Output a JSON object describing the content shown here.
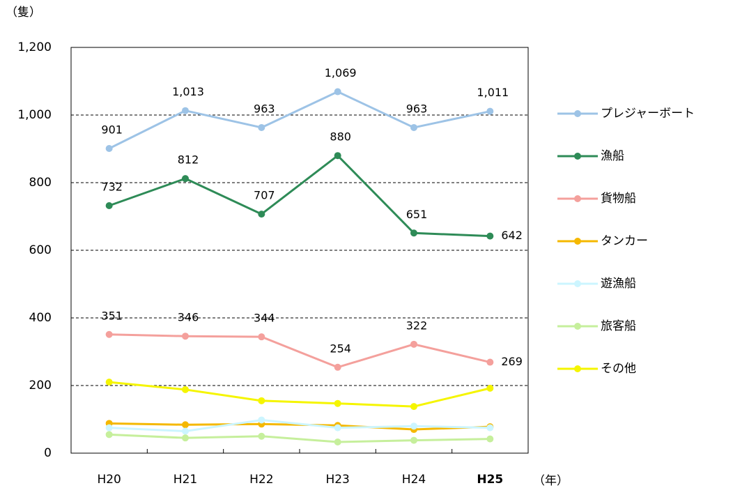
{
  "chart_data": {
    "type": "line",
    "y_axis_label": "（隻）",
    "x_axis_label": "（年）",
    "categories": [
      "H20",
      "H21",
      "H22",
      "H23",
      "H24",
      "H25"
    ],
    "category_colors": [
      "#000000",
      "#000000",
      "#000000",
      "#000000",
      "#000000",
      "#ff0000"
    ],
    "ylim": [
      0,
      1200
    ],
    "yticks": [
      0,
      200,
      400,
      600,
      800,
      {
        "value": 1000,
        "label": "1,000"
      },
      {
        "value": 1200,
        "label": "1,200"
      }
    ],
    "grid": true,
    "legend": "right",
    "series": [
      {
        "name": "プレジャーボート",
        "color": "#9dc3e6",
        "values": [
          901,
          1013,
          963,
          1069,
          963,
          1011
        ],
        "value_labels": [
          "901",
          "1,013",
          "963",
          "1,069",
          "963",
          "1,011"
        ]
      },
      {
        "name": "漁船",
        "color": "#2e8b57",
        "values": [
          732,
          812,
          707,
          880,
          651,
          642
        ],
        "data_labels": true
      },
      {
        "name": "貨物船",
        "color": "#f4a09c",
        "values": [
          351,
          346,
          344,
          254,
          322,
          269
        ],
        "data_labels": true
      },
      {
        "name": "タンカー",
        "color": "#f5b800",
        "values": [
          88,
          84,
          86,
          82,
          70,
          78
        ]
      },
      {
        "name": "遊漁船",
        "color": "#ccf5ff",
        "values": [
          75,
          65,
          98,
          75,
          80,
          75
        ]
      },
      {
        "name": "旅客船",
        "color": "#c6ef9c",
        "values": [
          55,
          45,
          50,
          33,
          38,
          42
        ]
      },
      {
        "name": "その他",
        "color": "#f5f500",
        "values": [
          210,
          188,
          155,
          147,
          138,
          192
        ]
      }
    ]
  }
}
